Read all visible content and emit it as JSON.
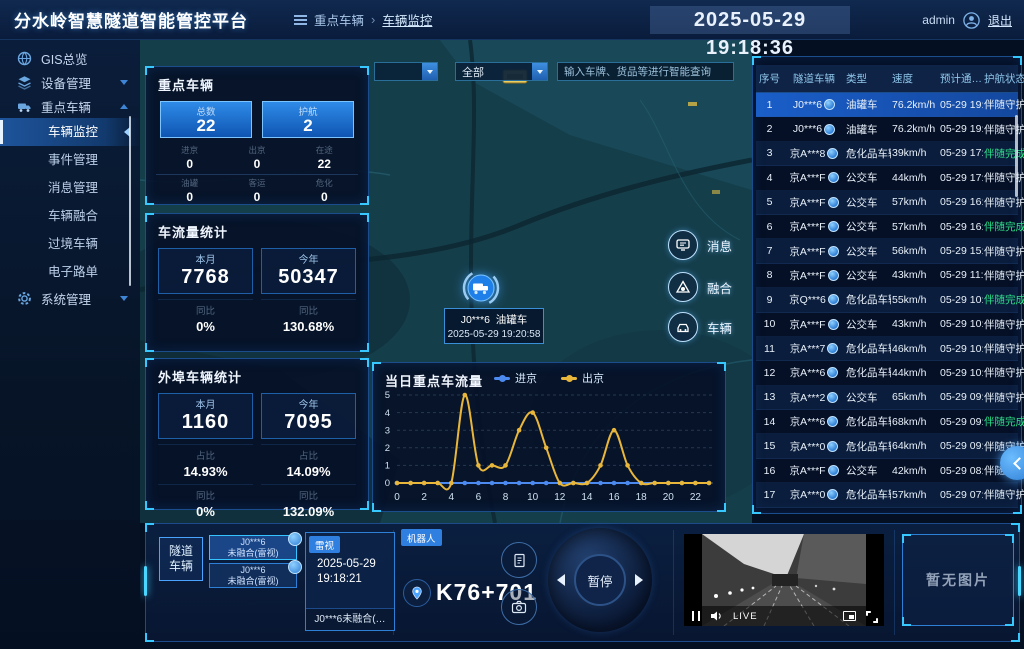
{
  "header": {
    "title": "分水岭智慧隧道智能管控平台",
    "breadcrumb": [
      "重点车辆",
      "车辆监控"
    ],
    "breadcrumb_sep": "›",
    "time": "2025-05-29 19:18:36",
    "user": "admin",
    "logout": "退出"
  },
  "sidebar": {
    "items": [
      {
        "label": "GIS总览"
      },
      {
        "label": "设备管理"
      },
      {
        "label": "重点车辆"
      },
      {
        "label": "系统管理"
      }
    ],
    "submenu": [
      "车辆监控",
      "事件管理",
      "消息管理",
      "车辆融合",
      "过境车辆",
      "电子路单"
    ]
  },
  "map": {
    "filters": [
      {
        "value": ""
      },
      {
        "value": "全部"
      }
    ],
    "search_placeholder": "输入车牌、货品等进行智能查询",
    "marker": {
      "plate": "J0***6",
      "vtype": "油罐车",
      "time": "2025-05-29 19:20:58"
    },
    "float_buttons": [
      "消息",
      "融合",
      "车辆"
    ]
  },
  "key_vehicles": {
    "title": "重点车辆",
    "totals": [
      {
        "label": "总数",
        "value": "22"
      },
      {
        "label": "护航",
        "value": "2"
      }
    ],
    "stats": [
      {
        "label": "进京",
        "value": "0"
      },
      {
        "label": "出京",
        "value": "0"
      },
      {
        "label": "在途",
        "value": "22"
      },
      {
        "label": "油罐",
        "value": "0"
      },
      {
        "label": "客运",
        "value": "0"
      },
      {
        "label": "危化",
        "value": "0"
      }
    ]
  },
  "flow_stats": {
    "title": "车流量统计",
    "cards": [
      {
        "period": "本月",
        "value": "7768",
        "yoy_label": "同比",
        "yoy": "0%"
      },
      {
        "period": "今年",
        "value": "50347",
        "yoy_label": "同比",
        "yoy": "130.68%"
      }
    ]
  },
  "external_stats": {
    "title": "外埠车辆统计",
    "cards": [
      {
        "period": "本月",
        "value": "1160",
        "ratio_label": "占比",
        "ratio": "14.93%",
        "yoy_label": "同比",
        "yoy": "0%"
      },
      {
        "period": "今年",
        "value": "7095",
        "ratio_label": "占比",
        "ratio": "14.09%",
        "yoy_label": "同比",
        "yoy": "132.09%"
      }
    ]
  },
  "chart_data": {
    "type": "line",
    "title": "当日重点车流量",
    "x": [
      0,
      1,
      2,
      3,
      4,
      5,
      6,
      7,
      8,
      9,
      10,
      11,
      12,
      13,
      14,
      15,
      16,
      17,
      18,
      19,
      20,
      21,
      22,
      23
    ],
    "series": [
      {
        "name": "进京",
        "color": "#4d8af0",
        "values": [
          0,
          0,
          0,
          0,
          0,
          0,
          0,
          0,
          0,
          0,
          0,
          0,
          0,
          0,
          0,
          0,
          0,
          0,
          0,
          0,
          0,
          0,
          0,
          0
        ]
      },
      {
        "name": "出京",
        "color": "#e8b63b",
        "values": [
          0,
          0,
          0,
          0,
          0,
          5,
          1,
          1,
          1,
          3,
          4,
          2,
          0,
          0,
          0,
          1,
          3,
          1,
          0,
          0,
          0,
          0,
          0,
          0
        ]
      }
    ],
    "ylim": [
      0,
      5
    ],
    "yticks": [
      0,
      1,
      2,
      3,
      4,
      5
    ],
    "xticks": [
      0,
      2,
      4,
      6,
      8,
      10,
      12,
      14,
      16,
      18,
      20,
      22
    ],
    "grid": "horizontal-dashed",
    "legend_position": "top-center"
  },
  "table": {
    "headers": [
      "序号",
      "隧道车辆",
      "类型",
      "速度",
      "预计通…",
      "护航状态"
    ],
    "rows": [
      {
        "seq": "1",
        "plate": "J0***6",
        "type": "油罐车",
        "speed": "76.2km/h",
        "eta": "05-29 19:1",
        "status": "伴随守护",
        "status_cls": "",
        "row_cls": "selected"
      },
      {
        "seq": "2",
        "plate": "J0***6",
        "type": "油罐车",
        "speed": "76.2km/h",
        "eta": "05-29 19:1",
        "status": "伴随守护",
        "status_cls": "",
        "row_cls": ""
      },
      {
        "seq": "3",
        "plate": "京A***8",
        "type": "危化品车辆",
        "speed": "39km/h",
        "eta": "05-29 17:",
        "status": "伴随完成",
        "status_cls": "done",
        "row_cls": ""
      },
      {
        "seq": "4",
        "plate": "京A***F",
        "type": "公交车",
        "speed": "44km/h",
        "eta": "05-29 17:1",
        "status": "伴随守护",
        "status_cls": "",
        "row_cls": ""
      },
      {
        "seq": "5",
        "plate": "京A***F",
        "type": "公交车",
        "speed": "57km/h",
        "eta": "05-29 16:1",
        "status": "伴随守护",
        "status_cls": "",
        "row_cls": ""
      },
      {
        "seq": "6",
        "plate": "京A***F",
        "type": "公交车",
        "speed": "57km/h",
        "eta": "05-29 16:",
        "status": "伴随完成",
        "status_cls": "done",
        "row_cls": ""
      },
      {
        "seq": "7",
        "plate": "京A***F",
        "type": "公交车",
        "speed": "56km/h",
        "eta": "05-29 15:1",
        "status": "伴随守护",
        "status_cls": "",
        "row_cls": ""
      },
      {
        "seq": "8",
        "plate": "京A***F",
        "type": "公交车",
        "speed": "43km/h",
        "eta": "05-29 11:1",
        "status": "伴随守护",
        "status_cls": "",
        "row_cls": ""
      },
      {
        "seq": "9",
        "plate": "京Q***6",
        "type": "危化品车辆",
        "speed": "55km/h",
        "eta": "05-29 10:",
        "status": "伴随完成",
        "status_cls": "done",
        "row_cls": ""
      },
      {
        "seq": "10",
        "plate": "京A***F",
        "type": "公交车",
        "speed": "43km/h",
        "eta": "05-29 10:1",
        "status": "伴随守护",
        "status_cls": "",
        "row_cls": ""
      },
      {
        "seq": "11",
        "plate": "京A***7",
        "type": "危化品车辆",
        "speed": "46km/h",
        "eta": "05-29 10:1",
        "status": "伴随守护",
        "status_cls": "",
        "row_cls": ""
      },
      {
        "seq": "12",
        "plate": "京A***6",
        "type": "危化品车辆",
        "speed": "44km/h",
        "eta": "05-29 10:1",
        "status": "伴随守护",
        "status_cls": "",
        "row_cls": ""
      },
      {
        "seq": "13",
        "plate": "京A***2",
        "type": "公交车",
        "speed": "65km/h",
        "eta": "05-29 09:1",
        "status": "伴随守护",
        "status_cls": "",
        "row_cls": ""
      },
      {
        "seq": "14",
        "plate": "京A***6",
        "type": "危化品车辆",
        "speed": "68km/h",
        "eta": "05-29 09:",
        "status": "伴随完成",
        "status_cls": "done",
        "row_cls": ""
      },
      {
        "seq": "15",
        "plate": "京A***0",
        "type": "危化品车辆",
        "speed": "64km/h",
        "eta": "05-29 09:1",
        "status": "伴随守护",
        "status_cls": "",
        "row_cls": ""
      },
      {
        "seq": "16",
        "plate": "京A***F",
        "type": "公交车",
        "speed": "42km/h",
        "eta": "05-29 08:1",
        "status": "伴随守护",
        "status_cls": "",
        "row_cls": ""
      },
      {
        "seq": "17",
        "plate": "京A***0",
        "type": "危化品车辆",
        "speed": "57km/h",
        "eta": "05-29 07:1",
        "status": "伴随守护",
        "status_cls": "",
        "row_cls": ""
      }
    ]
  },
  "bottom": {
    "tunnel_button": "隧道车辆",
    "chips": [
      {
        "line1": "J0***6",
        "line2": "未融合(雷视)"
      },
      {
        "line1": "J0***6",
        "line2": "未融合(雷视)"
      }
    ],
    "card": {
      "tag": "雷视",
      "date": "2025-05-29",
      "time": "19:18:21",
      "footer": "J0***6未融合(…"
    },
    "robot": {
      "tag": "机器人",
      "location": "K76+701",
      "pause": "暂停"
    },
    "video": {
      "live": "LIVE"
    },
    "no_image": "暂无图片"
  }
}
